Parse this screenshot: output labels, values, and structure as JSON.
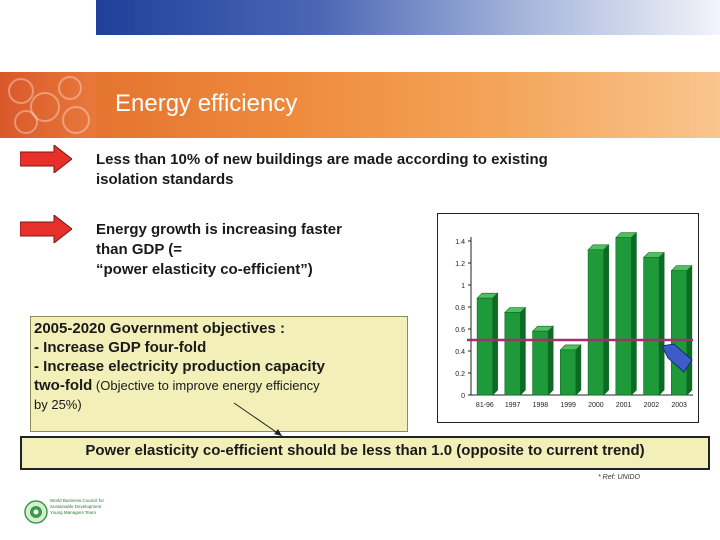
{
  "title": "Energy efficiency",
  "bullets": [
    {
      "line1": "Less than 10% of new buildings are made according to existing",
      "line2": "isolation standards"
    },
    {
      "line1": "Energy growth is increasing faster",
      "line2": "than GDP (=",
      "line3": "“power elasticity co-efficient”)"
    }
  ],
  "objectives": {
    "heading": "2005-2020 Government objectives :",
    "item1": "- Increase GDP four-fold",
    "item2": "- Increase electricity production capacity",
    "item3_bold": "two-fold",
    "item3_rest": " (Objective to improve energy efficiency",
    "item4": "by 25%)"
  },
  "conclusion": "Power elasticity co-efficient should be less than 1.0 (opposite to current trend)",
  "reference": "* Ref: UNIDO",
  "logo_text": [
    "World Business Council for",
    "Sustainable Development",
    "Young Managers Team"
  ],
  "colors": {
    "bar": "#1f9a3a",
    "bar_dark": "#0d6a22",
    "target_line": "#a3306a",
    "arrow": "#e8302a",
    "pointer": "#3c5cc8"
  },
  "chart_data": {
    "type": "bar",
    "categories": [
      "81-96",
      "1997",
      "1998",
      "1999",
      "2000",
      "2001",
      "2002",
      "2003"
    ],
    "values": [
      0.88,
      0.75,
      0.58,
      0.41,
      1.32,
      1.43,
      1.25,
      1.13
    ],
    "ylim": [
      0,
      1.4
    ],
    "yticks": [
      0,
      0.2,
      0.4,
      0.6,
      0.8,
      1,
      1.2,
      1.4
    ],
    "reference_line": 0.5
  }
}
